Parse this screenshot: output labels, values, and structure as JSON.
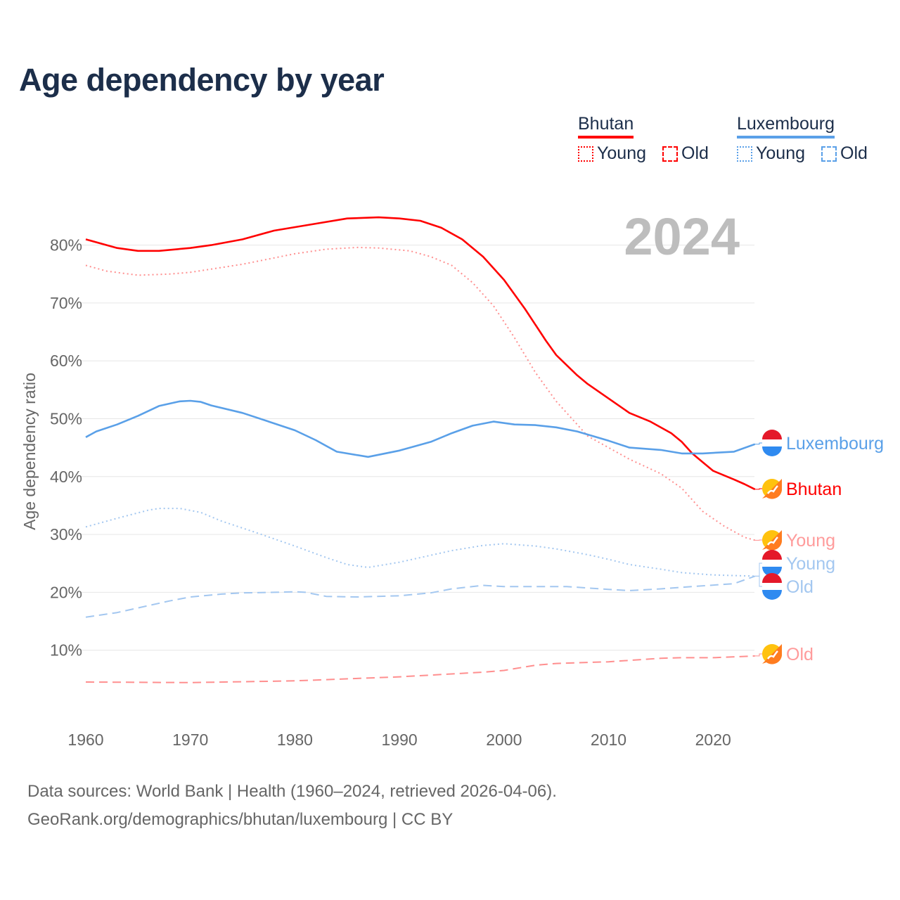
{
  "chart_data": {
    "type": "line",
    "title": "Age dependency by year",
    "xlabel": "",
    "ylabel": "Age dependency ratio",
    "xlim": [
      1960,
      2024
    ],
    "ylim": [
      0,
      85
    ],
    "x_ticks": [
      "1960",
      "1970",
      "1980",
      "1990",
      "2000",
      "2010",
      "2020"
    ],
    "y_ticks": [
      "10%",
      "20%",
      "30%",
      "40%",
      "50%",
      "60%",
      "70%",
      "80%"
    ],
    "year_annotation": "2024",
    "grid": true,
    "legend": {
      "placement": "top-right",
      "groups": [
        {
          "country": "Bhutan",
          "items": [
            "Young",
            "Old"
          ]
        },
        {
          "country": "Luxembourg",
          "items": [
            "Young",
            "Old"
          ]
        }
      ]
    },
    "series": [
      {
        "name": "Bhutan",
        "country": "Bhutan",
        "kind": "total",
        "color": "#ff0000",
        "style": "solid",
        "end_label": "Bhutan",
        "points": [
          [
            1960,
            81
          ],
          [
            1962,
            80
          ],
          [
            1963,
            79.5
          ],
          [
            1965,
            79
          ],
          [
            1967,
            79
          ],
          [
            1970,
            79.5
          ],
          [
            1972,
            80
          ],
          [
            1975,
            81
          ],
          [
            1978,
            82.5
          ],
          [
            1982,
            83.7
          ],
          [
            1985,
            84.6
          ],
          [
            1988,
            84.8
          ],
          [
            1990,
            84.6
          ],
          [
            1992,
            84.2
          ],
          [
            1994,
            83
          ],
          [
            1996,
            81
          ],
          [
            1998,
            78
          ],
          [
            2000,
            74
          ],
          [
            2002,
            69
          ],
          [
            2004,
            63.5
          ],
          [
            2005,
            61
          ],
          [
            2007,
            57.5
          ],
          [
            2008,
            56
          ],
          [
            2010,
            53.5
          ],
          [
            2012,
            51
          ],
          [
            2014,
            49.5
          ],
          [
            2016,
            47.5
          ],
          [
            2017,
            46
          ],
          [
            2018,
            44
          ],
          [
            2019,
            42.5
          ],
          [
            2020,
            41
          ],
          [
            2022,
            39.5
          ],
          [
            2023,
            38.7
          ],
          [
            2024,
            37.8
          ]
        ]
      },
      {
        "name": "Bhutan Young",
        "country": "Bhutan",
        "kind": "young",
        "color": "#ff8f8f",
        "style": "dotted",
        "end_label": "Young",
        "points": [
          [
            1960,
            76.5
          ],
          [
            1962,
            75.5
          ],
          [
            1965,
            74.8
          ],
          [
            1968,
            75
          ],
          [
            1970,
            75.3
          ],
          [
            1975,
            76.7
          ],
          [
            1980,
            78.5
          ],
          [
            1983,
            79.3
          ],
          [
            1986,
            79.6
          ],
          [
            1988,
            79.5
          ],
          [
            1991,
            79
          ],
          [
            1993,
            78
          ],
          [
            1995,
            76.5
          ],
          [
            1997,
            73.5
          ],
          [
            1999,
            69.5
          ],
          [
            2001,
            64
          ],
          [
            2003,
            58
          ],
          [
            2005,
            53
          ],
          [
            2008,
            47
          ],
          [
            2010,
            45
          ],
          [
            2012,
            43
          ],
          [
            2015,
            40.5
          ],
          [
            2017,
            38
          ],
          [
            2019,
            34
          ],
          [
            2021,
            31.5
          ],
          [
            2023,
            29.5
          ],
          [
            2024,
            29
          ]
        ]
      },
      {
        "name": "Bhutan Old",
        "country": "Bhutan",
        "kind": "old",
        "color": "#ff8f8f",
        "style": "dashed",
        "end_label": "Old",
        "points": [
          [
            1960,
            4.5
          ],
          [
            1970,
            4.4
          ],
          [
            1980,
            4.7
          ],
          [
            1990,
            5.4
          ],
          [
            1998,
            6.2
          ],
          [
            2000,
            6.5
          ],
          [
            2003,
            7.4
          ],
          [
            2005,
            7.7
          ],
          [
            2010,
            8
          ],
          [
            2015,
            8.6
          ],
          [
            2017,
            8.7
          ],
          [
            2020,
            8.7
          ],
          [
            2024,
            9
          ]
        ]
      },
      {
        "name": "Luxembourg",
        "country": "Luxembourg",
        "kind": "total",
        "color": "#5aa0e8",
        "style": "solid",
        "end_label": "Luxembourg",
        "points": [
          [
            1960,
            46.8
          ],
          [
            1961,
            47.8
          ],
          [
            1963,
            49
          ],
          [
            1965,
            50.5
          ],
          [
            1967,
            52.2
          ],
          [
            1969,
            53
          ],
          [
            1970,
            53.1
          ],
          [
            1971,
            52.9
          ],
          [
            1972,
            52.3
          ],
          [
            1975,
            51
          ],
          [
            1978,
            49.2
          ],
          [
            1980,
            48
          ],
          [
            1982,
            46.3
          ],
          [
            1984,
            44.3
          ],
          [
            1987,
            43.4
          ],
          [
            1990,
            44.5
          ],
          [
            1993,
            46
          ],
          [
            1995,
            47.5
          ],
          [
            1997,
            48.8
          ],
          [
            1999,
            49.5
          ],
          [
            2001,
            49
          ],
          [
            2003,
            48.9
          ],
          [
            2005,
            48.5
          ],
          [
            2007,
            47.8
          ],
          [
            2010,
            46.2
          ],
          [
            2012,
            45
          ],
          [
            2015,
            44.6
          ],
          [
            2017,
            44
          ],
          [
            2019,
            44
          ],
          [
            2022,
            44.3
          ],
          [
            2024,
            45.6
          ]
        ]
      },
      {
        "name": "Luxembourg Young",
        "country": "Luxembourg",
        "kind": "young",
        "color": "#a3c7f0",
        "style": "dotted",
        "end_label": "Young",
        "points": [
          [
            1960,
            31.3
          ],
          [
            1963,
            32.8
          ],
          [
            1966,
            34.2
          ],
          [
            1967,
            34.5
          ],
          [
            1969,
            34.5
          ],
          [
            1971,
            33.8
          ],
          [
            1973,
            32.3
          ],
          [
            1976,
            30.5
          ],
          [
            1980,
            28
          ],
          [
            1983,
            26
          ],
          [
            1985,
            24.8
          ],
          [
            1987,
            24.3
          ],
          [
            1990,
            25.2
          ],
          [
            1993,
            26.4
          ],
          [
            1995,
            27.2
          ],
          [
            1998,
            28.1
          ],
          [
            2000,
            28.4
          ],
          [
            2003,
            28
          ],
          [
            2005,
            27.5
          ],
          [
            2008,
            26.5
          ],
          [
            2010,
            25.7
          ],
          [
            2012,
            24.8
          ],
          [
            2015,
            24
          ],
          [
            2017,
            23.4
          ],
          [
            2020,
            23
          ],
          [
            2024,
            22.8
          ]
        ]
      },
      {
        "name": "Luxembourg Old",
        "country": "Luxembourg",
        "kind": "old",
        "color": "#a3c7f0",
        "style": "dashed",
        "end_label": "Old",
        "points": [
          [
            1960,
            15.7
          ],
          [
            1963,
            16.5
          ],
          [
            1965,
            17.3
          ],
          [
            1968,
            18.5
          ],
          [
            1970,
            19.2
          ],
          [
            1973,
            19.7
          ],
          [
            1975,
            19.9
          ],
          [
            1978,
            20
          ],
          [
            1980,
            20.1
          ],
          [
            1981,
            20
          ],
          [
            1983,
            19.3
          ],
          [
            1986,
            19.2
          ],
          [
            1990,
            19.4
          ],
          [
            1993,
            19.9
          ],
          [
            1995,
            20.6
          ],
          [
            1998,
            21.2
          ],
          [
            2000,
            21
          ],
          [
            2003,
            21
          ],
          [
            2006,
            21
          ],
          [
            2010,
            20.5
          ],
          [
            2012,
            20.3
          ],
          [
            2015,
            20.6
          ],
          [
            2018,
            21
          ],
          [
            2022,
            21.5
          ],
          [
            2024,
            22.8
          ]
        ]
      }
    ]
  },
  "footer": {
    "line1": "Data sources: World Bank | Health (1960–2024, retrieved 2026-04-06).",
    "line2": "GeoRank.org/demographics/bhutan/luxembourg | CC BY"
  }
}
